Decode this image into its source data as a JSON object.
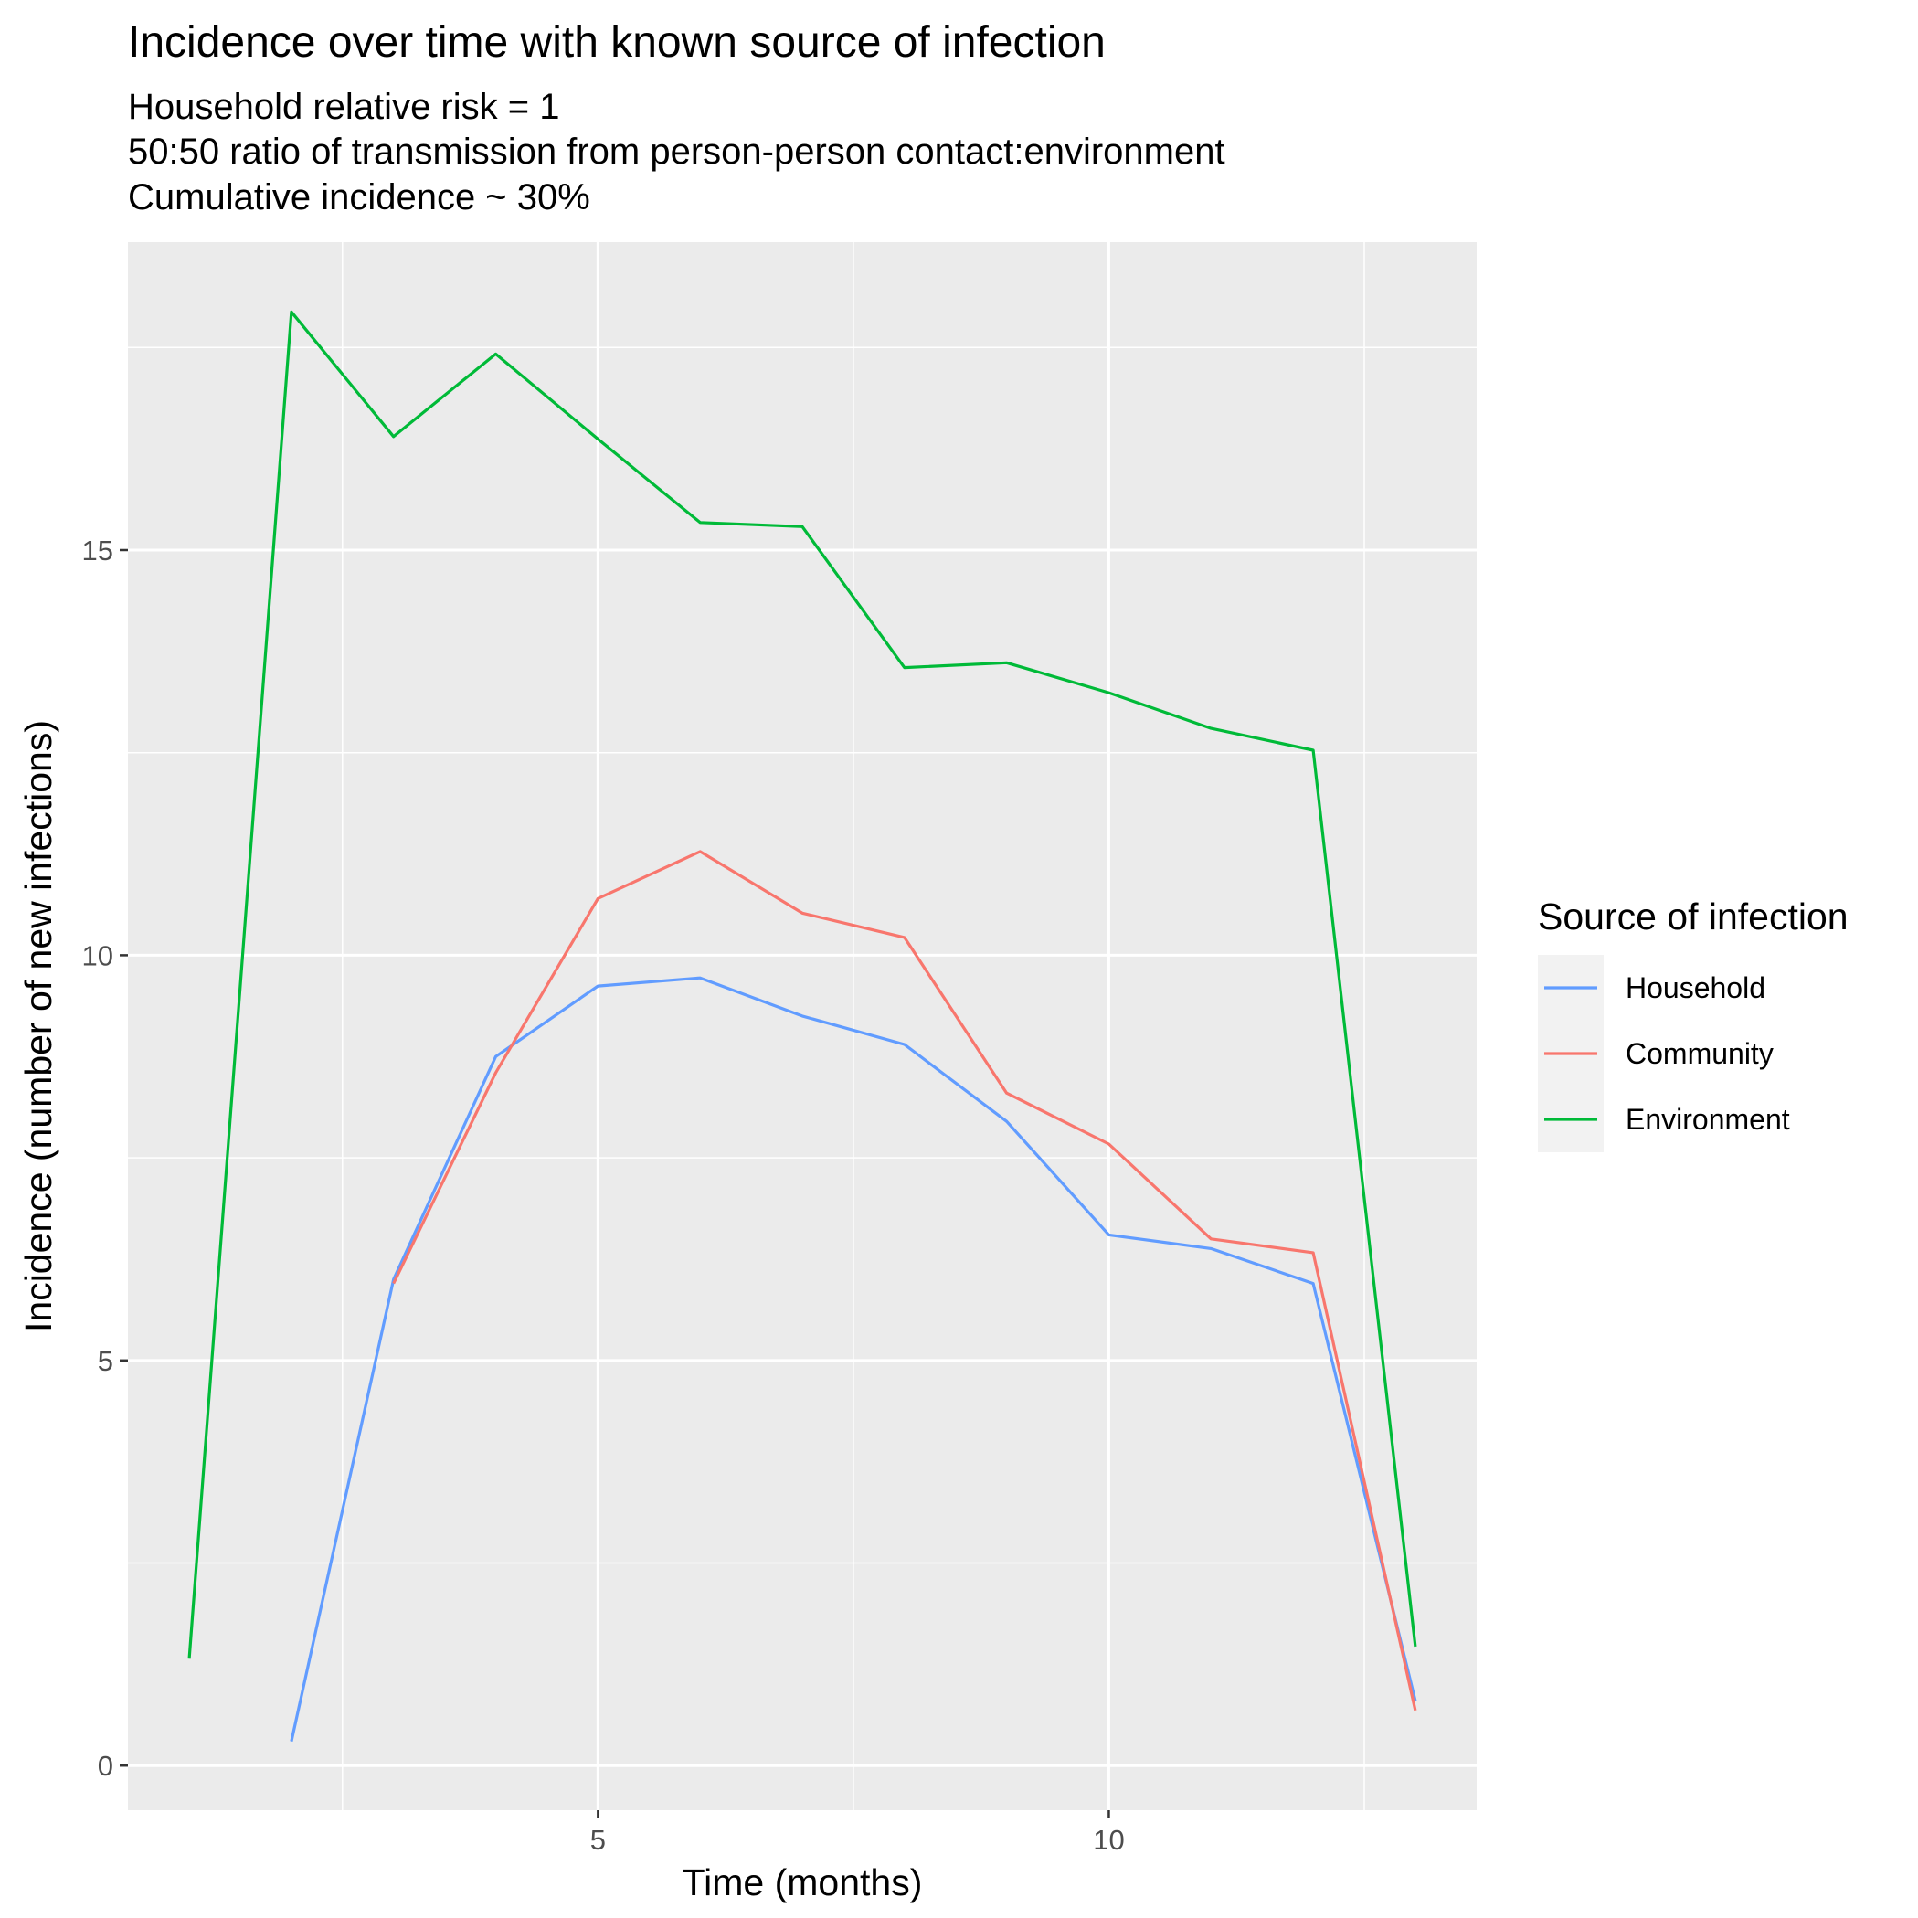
{
  "chart_data": {
    "type": "line",
    "title": "Incidence over time with known source of infection",
    "subtitle_lines": [
      "Household relative risk = 1",
      "50:50 ratio of transmission from person-person contact:environment",
      "Cumulative incidence ~ 30%"
    ],
    "xlabel": "Time (months)",
    "ylabel": "Incidence (number of new infections)",
    "xlim": [
      0.4,
      13.6
    ],
    "ylim": [
      -0.55,
      18.8
    ],
    "x_ticks": [
      5,
      10
    ],
    "x_tick_labels": [
      "5",
      "10"
    ],
    "x_minor_ticks": [
      2.5,
      7.5,
      12.5
    ],
    "y_ticks": [
      0,
      5,
      10,
      15
    ],
    "y_tick_labels": [
      "0",
      "5",
      "10",
      "15"
    ],
    "y_minor_ticks": [
      2.5,
      7.5,
      12.5,
      17.5
    ],
    "grid": true,
    "panel_background": "#ebebeb",
    "legend": {
      "title": "Source of infection",
      "position": "right"
    },
    "series": [
      {
        "name": "Household",
        "color": "#619CFF",
        "x": [
          2,
          3,
          4,
          5,
          6,
          7,
          8,
          9,
          10,
          11,
          12,
          13
        ],
        "y": [
          0.3,
          6.0,
          8.75,
          9.62,
          9.72,
          9.25,
          8.9,
          7.95,
          6.55,
          6.38,
          5.95,
          0.8
        ]
      },
      {
        "name": "Community",
        "color": "#F8766D",
        "x": [
          3,
          4,
          5,
          6,
          7,
          8,
          9,
          10,
          11,
          12,
          13
        ],
        "y": [
          5.95,
          8.55,
          10.7,
          11.28,
          10.52,
          10.22,
          8.3,
          7.67,
          6.5,
          6.33,
          0.68
        ]
      },
      {
        "name": "Environment",
        "color": "#00BA38",
        "x": [
          1,
          2,
          3,
          4,
          5,
          6,
          7,
          8,
          9,
          10,
          11,
          12,
          13
        ],
        "y": [
          1.32,
          17.94,
          16.4,
          17.42,
          16.37,
          15.34,
          15.29,
          13.55,
          13.61,
          13.24,
          12.8,
          12.53,
          1.47
        ]
      }
    ]
  }
}
